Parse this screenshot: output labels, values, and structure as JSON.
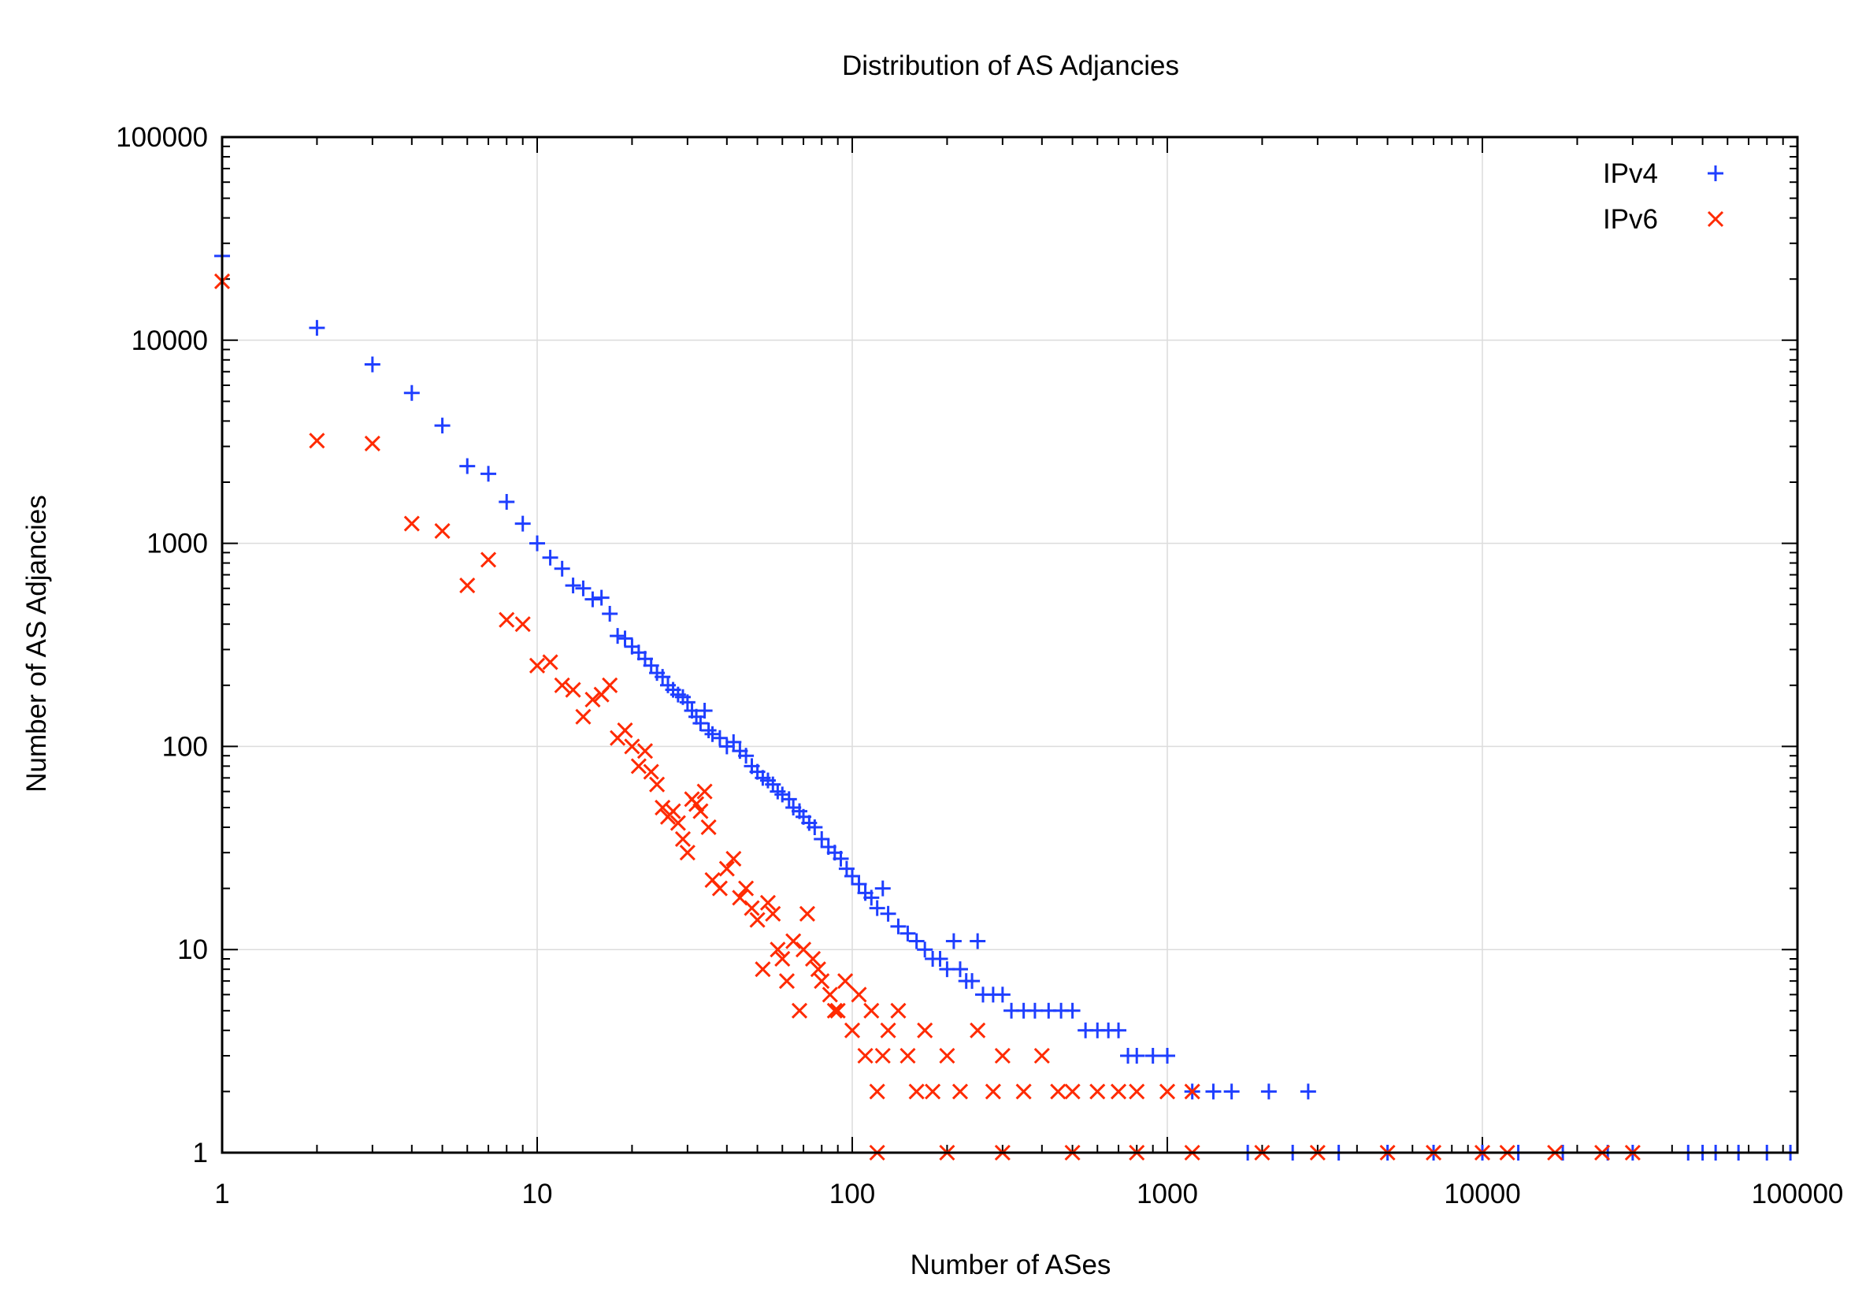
{
  "chart_data": {
    "type": "scatter",
    "title": "Distribution of AS Adjancies",
    "xlabel": "Number of ASes",
    "ylabel": "Number of AS Adjancies",
    "xscale": "log",
    "yscale": "log",
    "xlim": [
      1,
      100000
    ],
    "ylim": [
      1,
      100000
    ],
    "xticks": [
      "1",
      "10",
      "100",
      "1000",
      "10000",
      "100000"
    ],
    "yticks": [
      "1",
      "10",
      "100",
      "1000",
      "10000",
      "100000"
    ],
    "grid": true,
    "legend_position": "top-right",
    "series": [
      {
        "name": "IPv4",
        "marker": "plus",
        "color": "#1f3fff",
        "points": [
          [
            1,
            26000
          ],
          [
            2,
            11500
          ],
          [
            3,
            7600
          ],
          [
            4,
            5500
          ],
          [
            5,
            3800
          ],
          [
            6,
            2400
          ],
          [
            7,
            2200
          ],
          [
            8,
            1600
          ],
          [
            9,
            1250
          ],
          [
            10,
            1000
          ],
          [
            11,
            850
          ],
          [
            12,
            750
          ],
          [
            13,
            620
          ],
          [
            14,
            600
          ],
          [
            15,
            530
          ],
          [
            16,
            540
          ],
          [
            17,
            450
          ],
          [
            18,
            350
          ],
          [
            19,
            340
          ],
          [
            20,
            310
          ],
          [
            21,
            290
          ],
          [
            22,
            270
          ],
          [
            23,
            250
          ],
          [
            24,
            230
          ],
          [
            25,
            220
          ],
          [
            26,
            200
          ],
          [
            27,
            190
          ],
          [
            28,
            180
          ],
          [
            29,
            175
          ],
          [
            30,
            165
          ],
          [
            31,
            150
          ],
          [
            32,
            140
          ],
          [
            33,
            130
          ],
          [
            34,
            150
          ],
          [
            35,
            120
          ],
          [
            36,
            115
          ],
          [
            38,
            110
          ],
          [
            40,
            100
          ],
          [
            42,
            105
          ],
          [
            44,
            95
          ],
          [
            46,
            90
          ],
          [
            48,
            80
          ],
          [
            50,
            75
          ],
          [
            52,
            70
          ],
          [
            54,
            68
          ],
          [
            56,
            65
          ],
          [
            58,
            60
          ],
          [
            60,
            58
          ],
          [
            63,
            55
          ],
          [
            65,
            50
          ],
          [
            68,
            48
          ],
          [
            70,
            45
          ],
          [
            73,
            42
          ],
          [
            76,
            40
          ],
          [
            80,
            35
          ],
          [
            84,
            32
          ],
          [
            88,
            30
          ],
          [
            92,
            28
          ],
          [
            96,
            25
          ],
          [
            100,
            23
          ],
          [
            105,
            21
          ],
          [
            110,
            19
          ],
          [
            115,
            18
          ],
          [
            120,
            16
          ],
          [
            125,
            20
          ],
          [
            130,
            15
          ],
          [
            140,
            13
          ],
          [
            150,
            12
          ],
          [
            160,
            11
          ],
          [
            170,
            10
          ],
          [
            180,
            9
          ],
          [
            190,
            9
          ],
          [
            200,
            8
          ],
          [
            210,
            11
          ],
          [
            220,
            8
          ],
          [
            230,
            7
          ],
          [
            240,
            7
          ],
          [
            250,
            11
          ],
          [
            260,
            6
          ],
          [
            280,
            6
          ],
          [
            300,
            6
          ],
          [
            320,
            5
          ],
          [
            350,
            5
          ],
          [
            380,
            5
          ],
          [
            420,
            5
          ],
          [
            460,
            5
          ],
          [
            500,
            5
          ],
          [
            550,
            4
          ],
          [
            600,
            4
          ],
          [
            650,
            4
          ],
          [
            700,
            4
          ],
          [
            750,
            3
          ],
          [
            800,
            3
          ],
          [
            900,
            3
          ],
          [
            1000,
            3
          ],
          [
            1200,
            2
          ],
          [
            1400,
            2
          ],
          [
            1600,
            2
          ],
          [
            2100,
            2
          ],
          [
            2800,
            2
          ],
          [
            1800,
            1
          ],
          [
            2500,
            1
          ],
          [
            3500,
            1
          ],
          [
            5000,
            1
          ],
          [
            7000,
            1
          ],
          [
            10000,
            1
          ],
          [
            13000,
            1
          ],
          [
            18000,
            1
          ],
          [
            25000,
            1
          ],
          [
            30000,
            1
          ],
          [
            45000,
            1
          ],
          [
            50000,
            1
          ],
          [
            55000,
            1
          ],
          [
            65000,
            1
          ],
          [
            80000,
            1
          ],
          [
            95000,
            1
          ]
        ]
      },
      {
        "name": "IPv6",
        "marker": "cross",
        "color": "#ff2a00",
        "points": [
          [
            1,
            19500
          ],
          [
            2,
            3200
          ],
          [
            3,
            3100
          ],
          [
            4,
            1250
          ],
          [
            5,
            1150
          ],
          [
            6,
            620
          ],
          [
            7,
            830
          ],
          [
            8,
            420
          ],
          [
            9,
            400
          ],
          [
            10,
            250
          ],
          [
            11,
            260
          ],
          [
            12,
            200
          ],
          [
            13,
            190
          ],
          [
            14,
            140
          ],
          [
            15,
            170
          ],
          [
            16,
            180
          ],
          [
            17,
            200
          ],
          [
            18,
            110
          ],
          [
            19,
            120
          ],
          [
            20,
            100
          ],
          [
            21,
            80
          ],
          [
            22,
            95
          ],
          [
            23,
            75
          ],
          [
            24,
            65
          ],
          [
            25,
            50
          ],
          [
            26,
            45
          ],
          [
            27,
            48
          ],
          [
            28,
            42
          ],
          [
            29,
            35
          ],
          [
            30,
            30
          ],
          [
            31,
            55
          ],
          [
            32,
            52
          ],
          [
            33,
            48
          ],
          [
            34,
            60
          ],
          [
            35,
            40
          ],
          [
            36,
            22
          ],
          [
            38,
            20
          ],
          [
            40,
            25
          ],
          [
            42,
            28
          ],
          [
            44,
            18
          ],
          [
            46,
            20
          ],
          [
            48,
            16
          ],
          [
            50,
            14
          ],
          [
            52,
            8
          ],
          [
            54,
            17
          ],
          [
            56,
            15
          ],
          [
            58,
            10
          ],
          [
            60,
            9
          ],
          [
            62,
            7
          ],
          [
            65,
            11
          ],
          [
            68,
            5
          ],
          [
            70,
            10
          ],
          [
            72,
            15
          ],
          [
            75,
            9
          ],
          [
            78,
            8
          ],
          [
            80,
            7
          ],
          [
            85,
            6
          ],
          [
            88,
            5
          ],
          [
            90,
            5
          ],
          [
            95,
            7
          ],
          [
            100,
            4
          ],
          [
            105,
            6
          ],
          [
            110,
            3
          ],
          [
            115,
            5
          ],
          [
            120,
            2
          ],
          [
            125,
            3
          ],
          [
            130,
            4
          ],
          [
            140,
            5
          ],
          [
            150,
            3
          ],
          [
            160,
            2
          ],
          [
            170,
            4
          ],
          [
            180,
            2
          ],
          [
            200,
            3
          ],
          [
            220,
            2
          ],
          [
            250,
            4
          ],
          [
            280,
            2
          ],
          [
            300,
            3
          ],
          [
            350,
            2
          ],
          [
            400,
            3
          ],
          [
            450,
            2
          ],
          [
            500,
            2
          ],
          [
            600,
            2
          ],
          [
            700,
            2
          ],
          [
            800,
            2
          ],
          [
            1000,
            2
          ],
          [
            1200,
            2
          ],
          [
            120,
            1
          ],
          [
            200,
            1
          ],
          [
            300,
            1
          ],
          [
            500,
            1
          ],
          [
            800,
            1
          ],
          [
            1200,
            1
          ],
          [
            2000,
            1
          ],
          [
            3000,
            1
          ],
          [
            5000,
            1
          ],
          [
            7000,
            1
          ],
          [
            10000,
            1
          ],
          [
            12000,
            1
          ],
          [
            17000,
            1
          ],
          [
            24000,
            1
          ],
          [
            30000,
            1
          ]
        ]
      }
    ]
  }
}
